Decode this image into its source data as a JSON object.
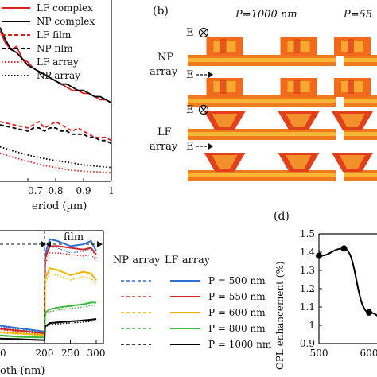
{
  "panel_a": {
    "legend": [
      {
        "label": "LF complex",
        "color": "#e02020",
        "dash": "solid"
      },
      {
        "label": "NP complex",
        "color": "#000000",
        "dash": "solid"
      },
      {
        "label": "LF film",
        "color": "#e02020",
        "dash": "dashed"
      },
      {
        "label": "NP film",
        "color": "#000000",
        "dash": "dashed"
      },
      {
        "label": "LF array",
        "color": "#e02020",
        "dash": "dotted"
      },
      {
        "label": "NP array",
        "color": "#000000",
        "dash": "dotted"
      }
    ],
    "xlabel": "eriod (µm)",
    "xticks": [
      "0.7",
      "0.8",
      "0.9",
      "1"
    ]
  },
  "panel_b": {
    "label": "(b)",
    "col_titles": [
      "P=1000 nm",
      "P=55"
    ],
    "row_labels": [
      [
        "NP",
        "array"
      ],
      [
        "LF",
        "array"
      ]
    ],
    "field_labels": [
      "E",
      "E",
      "E",
      "E"
    ],
    "field_types": [
      "out-of-plane",
      "in-plane",
      "out-of-plane",
      "in-plane"
    ]
  },
  "panel_c": {
    "region_label": "film",
    "legend_headers": [
      "NP array",
      "LF array"
    ],
    "legend_entries": [
      {
        "label": "P = 500 nm",
        "color": "#2f6fd0"
      },
      {
        "label": "P = 550 nm",
        "color": "#d42a2a"
      },
      {
        "label": "P = 600 nm",
        "color": "#f0b400"
      },
      {
        "label": "P = 800 nm",
        "color": "#3cb83c"
      },
      {
        "label": "P = 1000 nm",
        "color": "#000000"
      }
    ],
    "xlabel": "oth (nm)",
    "xticks": [
      "200",
      "250",
      "300"
    ],
    "xtick_partial": "0"
  },
  "panel_d": {
    "label": "(d)",
    "ylabel": "OPL enhancement (%)",
    "yticks": [
      "1.5",
      "1.4",
      "1.3",
      "1.2",
      "1.1",
      "1",
      "0.9"
    ],
    "xticks": [
      "500",
      "600"
    ]
  },
  "chart_data": [
    {
      "type": "line",
      "panel": "a",
      "xlabel": "eriod (µm)",
      "xlim": [
        0.6,
        1.0
      ],
      "series": [
        {
          "name": "LF complex",
          "x": [
            0.6,
            0.62,
            0.64,
            0.66,
            0.68,
            0.7,
            0.72,
            0.74,
            0.76,
            0.78,
            0.8,
            0.82,
            0.84,
            0.86,
            0.88,
            0.9,
            0.92,
            0.94,
            0.96,
            0.98,
            1.0
          ],
          "y": [
            3.0,
            2.8,
            2.7,
            2.75,
            2.55,
            2.5,
            2.4,
            2.35,
            2.3,
            2.25,
            2.2,
            2.15,
            2.1,
            2.05,
            2.05,
            2.0,
            2.0,
            1.95,
            1.9,
            1.9,
            1.85
          ]
        },
        {
          "name": "NP complex",
          "x": [
            0.6,
            0.62,
            0.64,
            0.66,
            0.68,
            0.7,
            0.72,
            0.74,
            0.76,
            0.78,
            0.8,
            0.82,
            0.84,
            0.86,
            0.88,
            0.9,
            0.92,
            0.94,
            0.96,
            0.98,
            1.0
          ],
          "y": [
            3.05,
            2.85,
            2.7,
            2.65,
            2.55,
            2.45,
            2.4,
            2.35,
            2.3,
            2.25,
            2.2,
            2.15,
            2.15,
            2.1,
            2.05,
            2.05,
            2.0,
            1.95,
            1.95,
            1.9,
            1.85
          ]
        },
        {
          "name": "LF film",
          "x": [
            0.6,
            0.65,
            0.7,
            0.72,
            0.74,
            0.76,
            0.78,
            0.8,
            0.82,
            0.84,
            0.86,
            0.88,
            0.9,
            0.92,
            0.94,
            0.96,
            0.98,
            1.0
          ],
          "y": [
            1.55,
            1.5,
            1.45,
            1.5,
            1.55,
            1.45,
            1.5,
            1.55,
            1.5,
            1.45,
            1.4,
            1.45,
            1.4,
            1.35,
            1.3,
            1.3,
            1.3,
            1.25
          ]
        },
        {
          "name": "NP film",
          "x": [
            0.6,
            0.65,
            0.7,
            0.72,
            0.74,
            0.76,
            0.78,
            0.8,
            0.82,
            0.84,
            0.86,
            0.88,
            0.9,
            0.92,
            0.94,
            0.96,
            0.98,
            1.0
          ],
          "y": [
            1.5,
            1.45,
            1.4,
            1.45,
            1.45,
            1.4,
            1.45,
            1.45,
            1.4,
            1.4,
            1.35,
            1.35,
            1.35,
            1.3,
            1.3,
            1.25,
            1.25,
            1.2
          ]
        },
        {
          "name": "LF array",
          "x": [
            0.6,
            0.65,
            0.7,
            0.75,
            0.8,
            0.85,
            0.9,
            0.95,
            1.0
          ],
          "y": [
            1.05,
            0.98,
            0.92,
            0.86,
            0.82,
            0.78,
            0.76,
            0.75,
            0.74
          ]
        },
        {
          "name": "NP array",
          "x": [
            0.6,
            0.65,
            0.7,
            0.75,
            0.8,
            0.85,
            0.9,
            0.95,
            1.0
          ],
          "y": [
            1.15,
            1.08,
            1.02,
            0.97,
            0.93,
            0.9,
            0.86,
            0.84,
            0.82
          ]
        }
      ]
    },
    {
      "type": "line",
      "panel": "c",
      "xlabel": "oth (nm)",
      "xlim": [
        100,
        300
      ],
      "series": [
        {
          "name": "P = 500 nm",
          "x": [
            100,
            150,
            200,
            201,
            210,
            225,
            250,
            275,
            290,
            300
          ],
          "y": [
            0.55,
            0.45,
            0.35,
            2.6,
            3.05,
            3.0,
            2.85,
            2.9,
            3.0,
            2.7
          ]
        },
        {
          "name": "P = 550 nm",
          "x": [
            100,
            150,
            200,
            201,
            210,
            225,
            250,
            275,
            290,
            300
          ],
          "y": [
            0.45,
            0.38,
            0.3,
            2.5,
            2.85,
            2.85,
            2.8,
            2.75,
            2.8,
            2.6
          ]
        },
        {
          "name": "P = 600 nm",
          "x": [
            100,
            150,
            200,
            201,
            210,
            225,
            250,
            275,
            290,
            300
          ],
          "y": [
            0.35,
            0.3,
            0.25,
            1.9,
            2.2,
            2.15,
            2.0,
            2.1,
            2.05,
            1.85
          ]
        },
        {
          "name": "P = 800 nm",
          "x": [
            100,
            150,
            200,
            201,
            210,
            225,
            250,
            275,
            290,
            300
          ],
          "y": [
            0.25,
            0.2,
            0.18,
            0.9,
            1.0,
            1.05,
            1.1,
            1.15,
            1.2,
            1.2
          ]
        },
        {
          "name": "P = 1000 nm",
          "x": [
            100,
            150,
            200,
            201,
            210,
            225,
            250,
            275,
            290,
            300
          ],
          "y": [
            0.15,
            0.13,
            0.1,
            0.5,
            0.6,
            0.62,
            0.65,
            0.68,
            0.7,
            0.72
          ]
        }
      ]
    },
    {
      "type": "line",
      "panel": "d",
      "ylabel": "OPL enhancement (%)",
      "xlim": [
        500,
        650
      ],
      "ylim": [
        0.9,
        1.5
      ],
      "series": [
        {
          "x": [
            500,
            550,
            600,
            650
          ],
          "y": [
            1.38,
            1.42,
            1.07,
            0.98
          ]
        }
      ]
    }
  ]
}
